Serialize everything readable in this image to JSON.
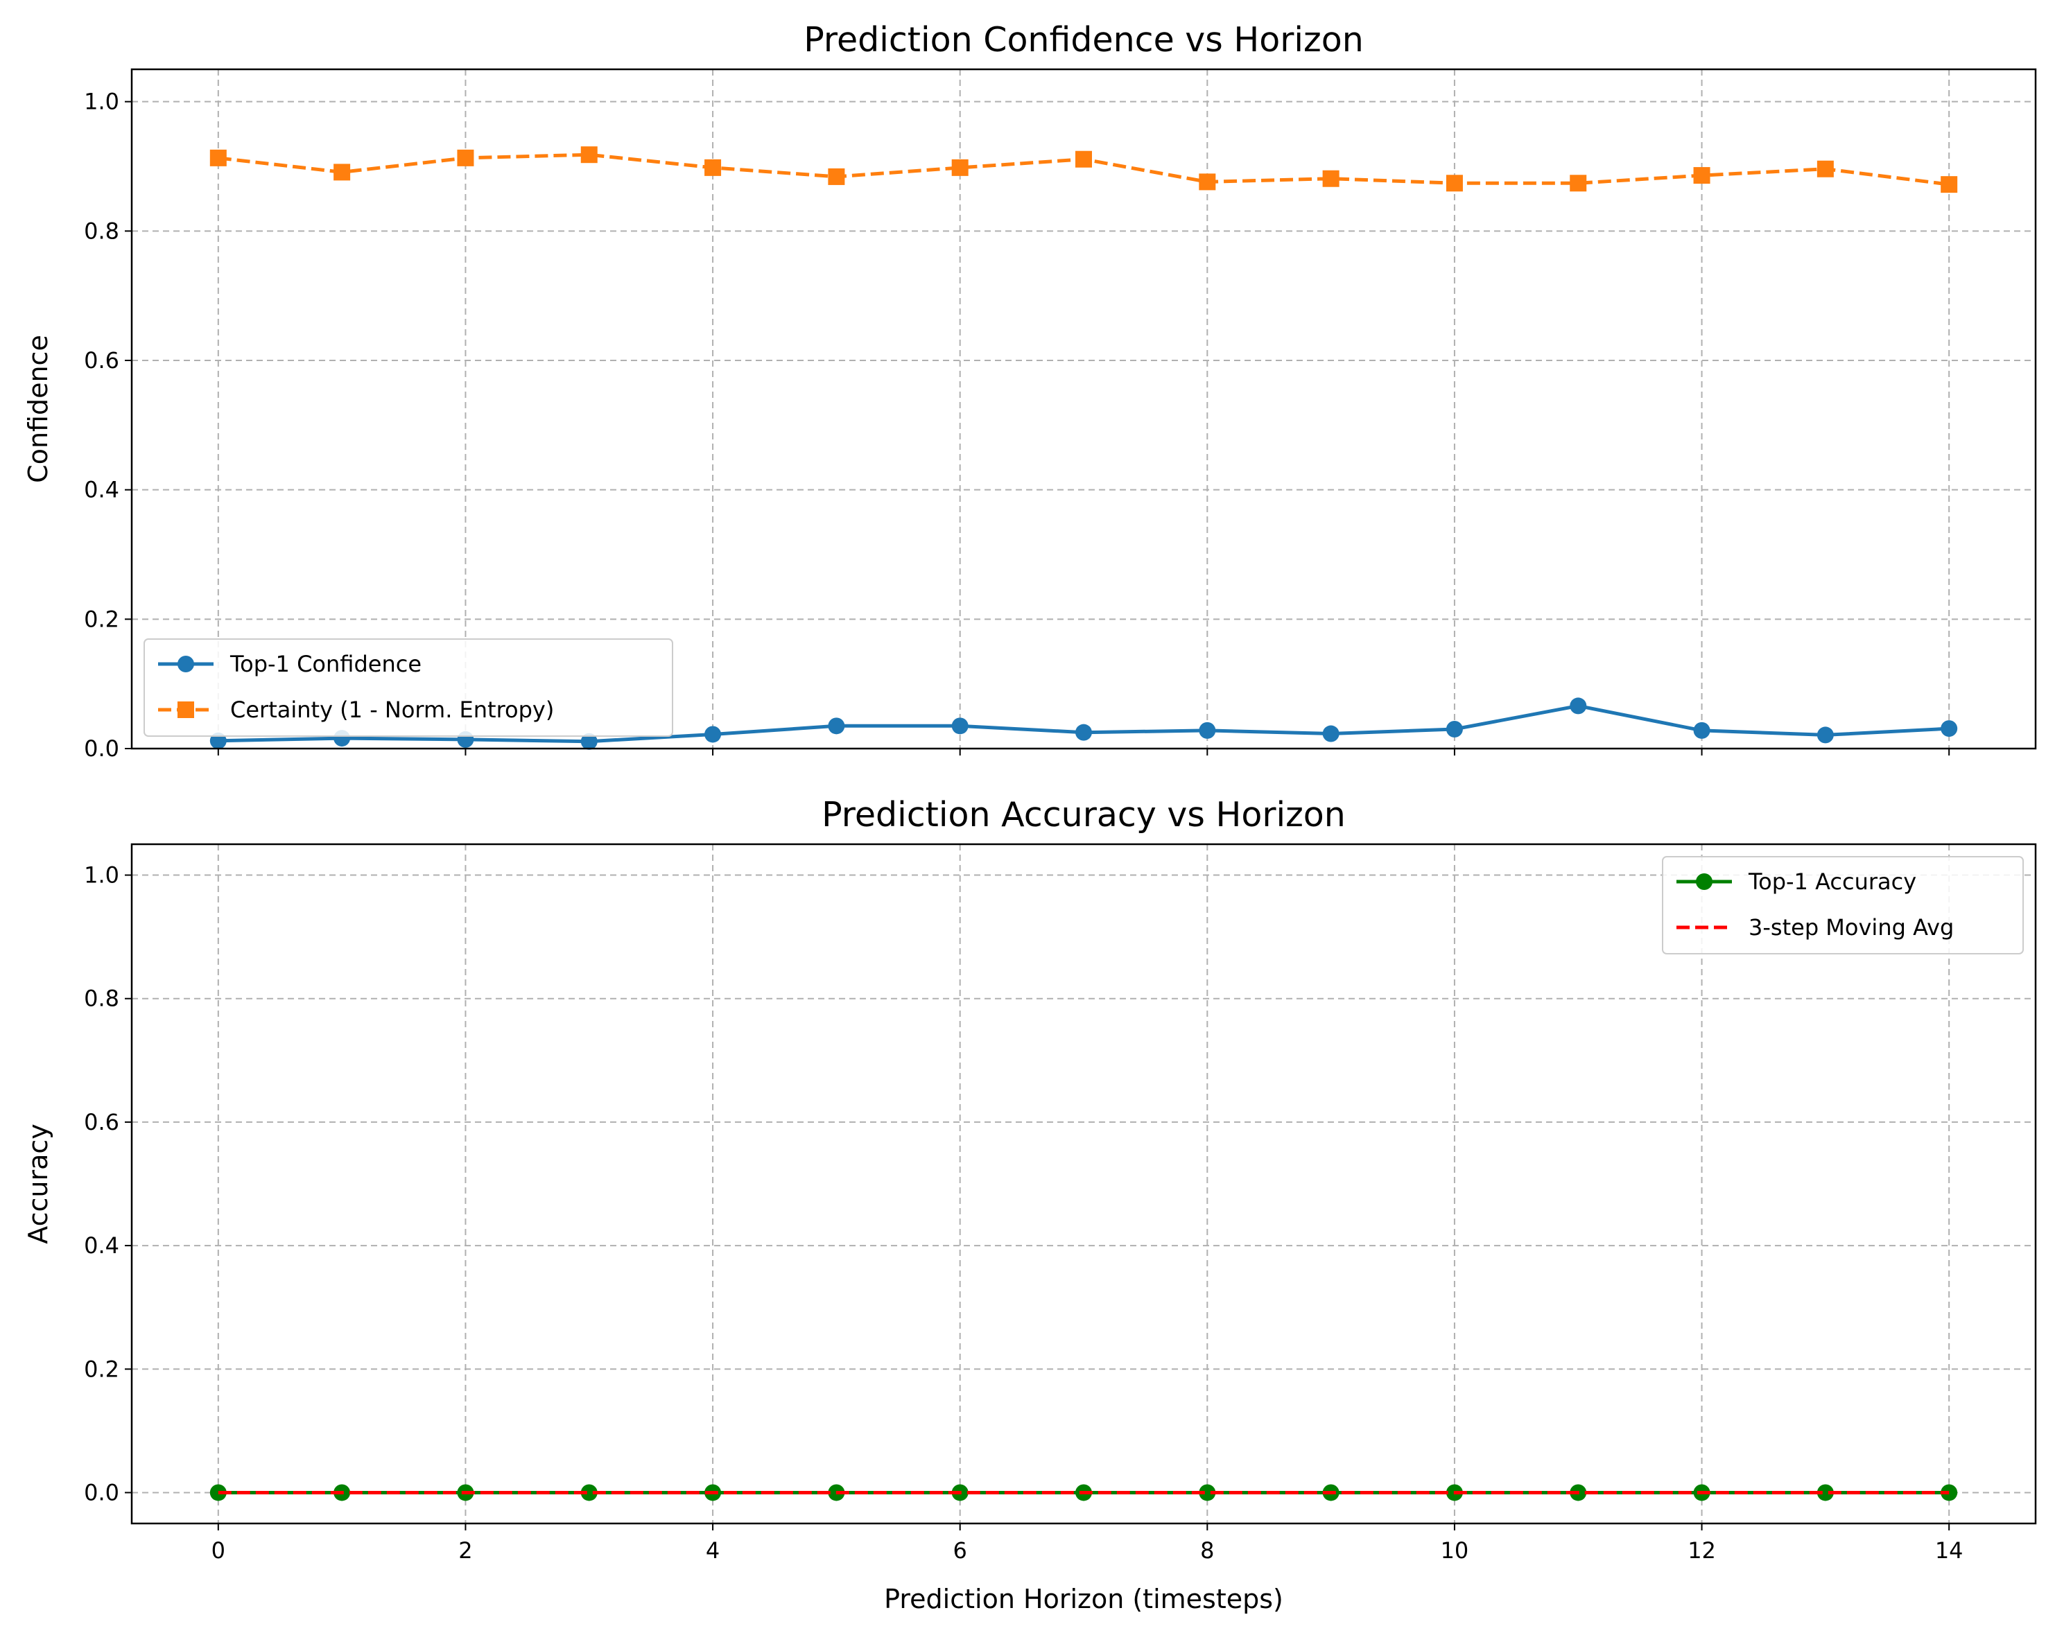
{
  "chart_data": [
    {
      "type": "line",
      "title": "Prediction Confidence vs Horizon",
      "xlabel": "",
      "ylabel": "Confidence",
      "xlim": [
        -0.7,
        14.7
      ],
      "ylim": [
        0,
        1.05
      ],
      "x_ticks": [
        0,
        2,
        4,
        6,
        8,
        10,
        12,
        14
      ],
      "y_ticks": [
        0.0,
        0.2,
        0.4,
        0.6,
        0.8,
        1.0
      ],
      "y_tick_labels": [
        "0.0",
        "0.2",
        "0.4",
        "0.6",
        "0.8",
        "1.0"
      ],
      "show_x_tick_labels": false,
      "grid": true,
      "legend_position": "lower-left",
      "x": [
        0,
        1,
        2,
        3,
        4,
        5,
        6,
        7,
        8,
        9,
        10,
        11,
        12,
        13,
        14
      ],
      "series": [
        {
          "name": "Top-1 Confidence",
          "color": "#1f77b4",
          "line_style": "solid",
          "marker": "circle",
          "values": [
            0.012,
            0.016,
            0.014,
            0.011,
            0.022,
            0.035,
            0.035,
            0.025,
            0.028,
            0.023,
            0.03,
            0.066,
            0.028,
            0.021,
            0.031
          ]
        },
        {
          "name": "Certainty (1 - Norm. Entropy)",
          "color": "#ff7f0e",
          "line_style": "dashed",
          "marker": "square",
          "values": [
            0.913,
            0.891,
            0.913,
            0.918,
            0.898,
            0.884,
            0.898,
            0.911,
            0.876,
            0.881,
            0.874,
            0.874,
            0.886,
            0.896,
            0.872
          ]
        }
      ]
    },
    {
      "type": "line",
      "title": "Prediction Accuracy vs Horizon",
      "xlabel": "Prediction Horizon (timesteps)",
      "ylabel": "Accuracy",
      "xlim": [
        -0.7,
        14.7
      ],
      "ylim": [
        -0.05,
        1.05
      ],
      "x_ticks": [
        0,
        2,
        4,
        6,
        8,
        10,
        12,
        14
      ],
      "x_tick_labels": [
        "0",
        "2",
        "4",
        "6",
        "8",
        "10",
        "12",
        "14"
      ],
      "y_ticks": [
        0.0,
        0.2,
        0.4,
        0.6,
        0.8,
        1.0
      ],
      "y_tick_labels": [
        "0.0",
        "0.2",
        "0.4",
        "0.6",
        "0.8",
        "1.0"
      ],
      "show_x_tick_labels": true,
      "grid": true,
      "legend_position": "upper-right",
      "x": [
        0,
        1,
        2,
        3,
        4,
        5,
        6,
        7,
        8,
        9,
        10,
        11,
        12,
        13,
        14
      ],
      "series": [
        {
          "name": "Top-1 Accuracy",
          "color": "#008000",
          "line_style": "solid",
          "marker": "circle",
          "values": [
            0,
            0,
            0,
            0,
            0,
            0,
            0,
            0,
            0,
            0,
            0,
            0,
            0,
            0,
            0
          ]
        },
        {
          "name": "3-step Moving Avg",
          "color": "#ff0000",
          "line_style": "dashed",
          "marker": "none",
          "values": [
            0,
            0,
            0,
            0,
            0,
            0,
            0,
            0,
            0,
            0,
            0,
            0,
            0,
            0,
            0
          ]
        }
      ]
    }
  ]
}
